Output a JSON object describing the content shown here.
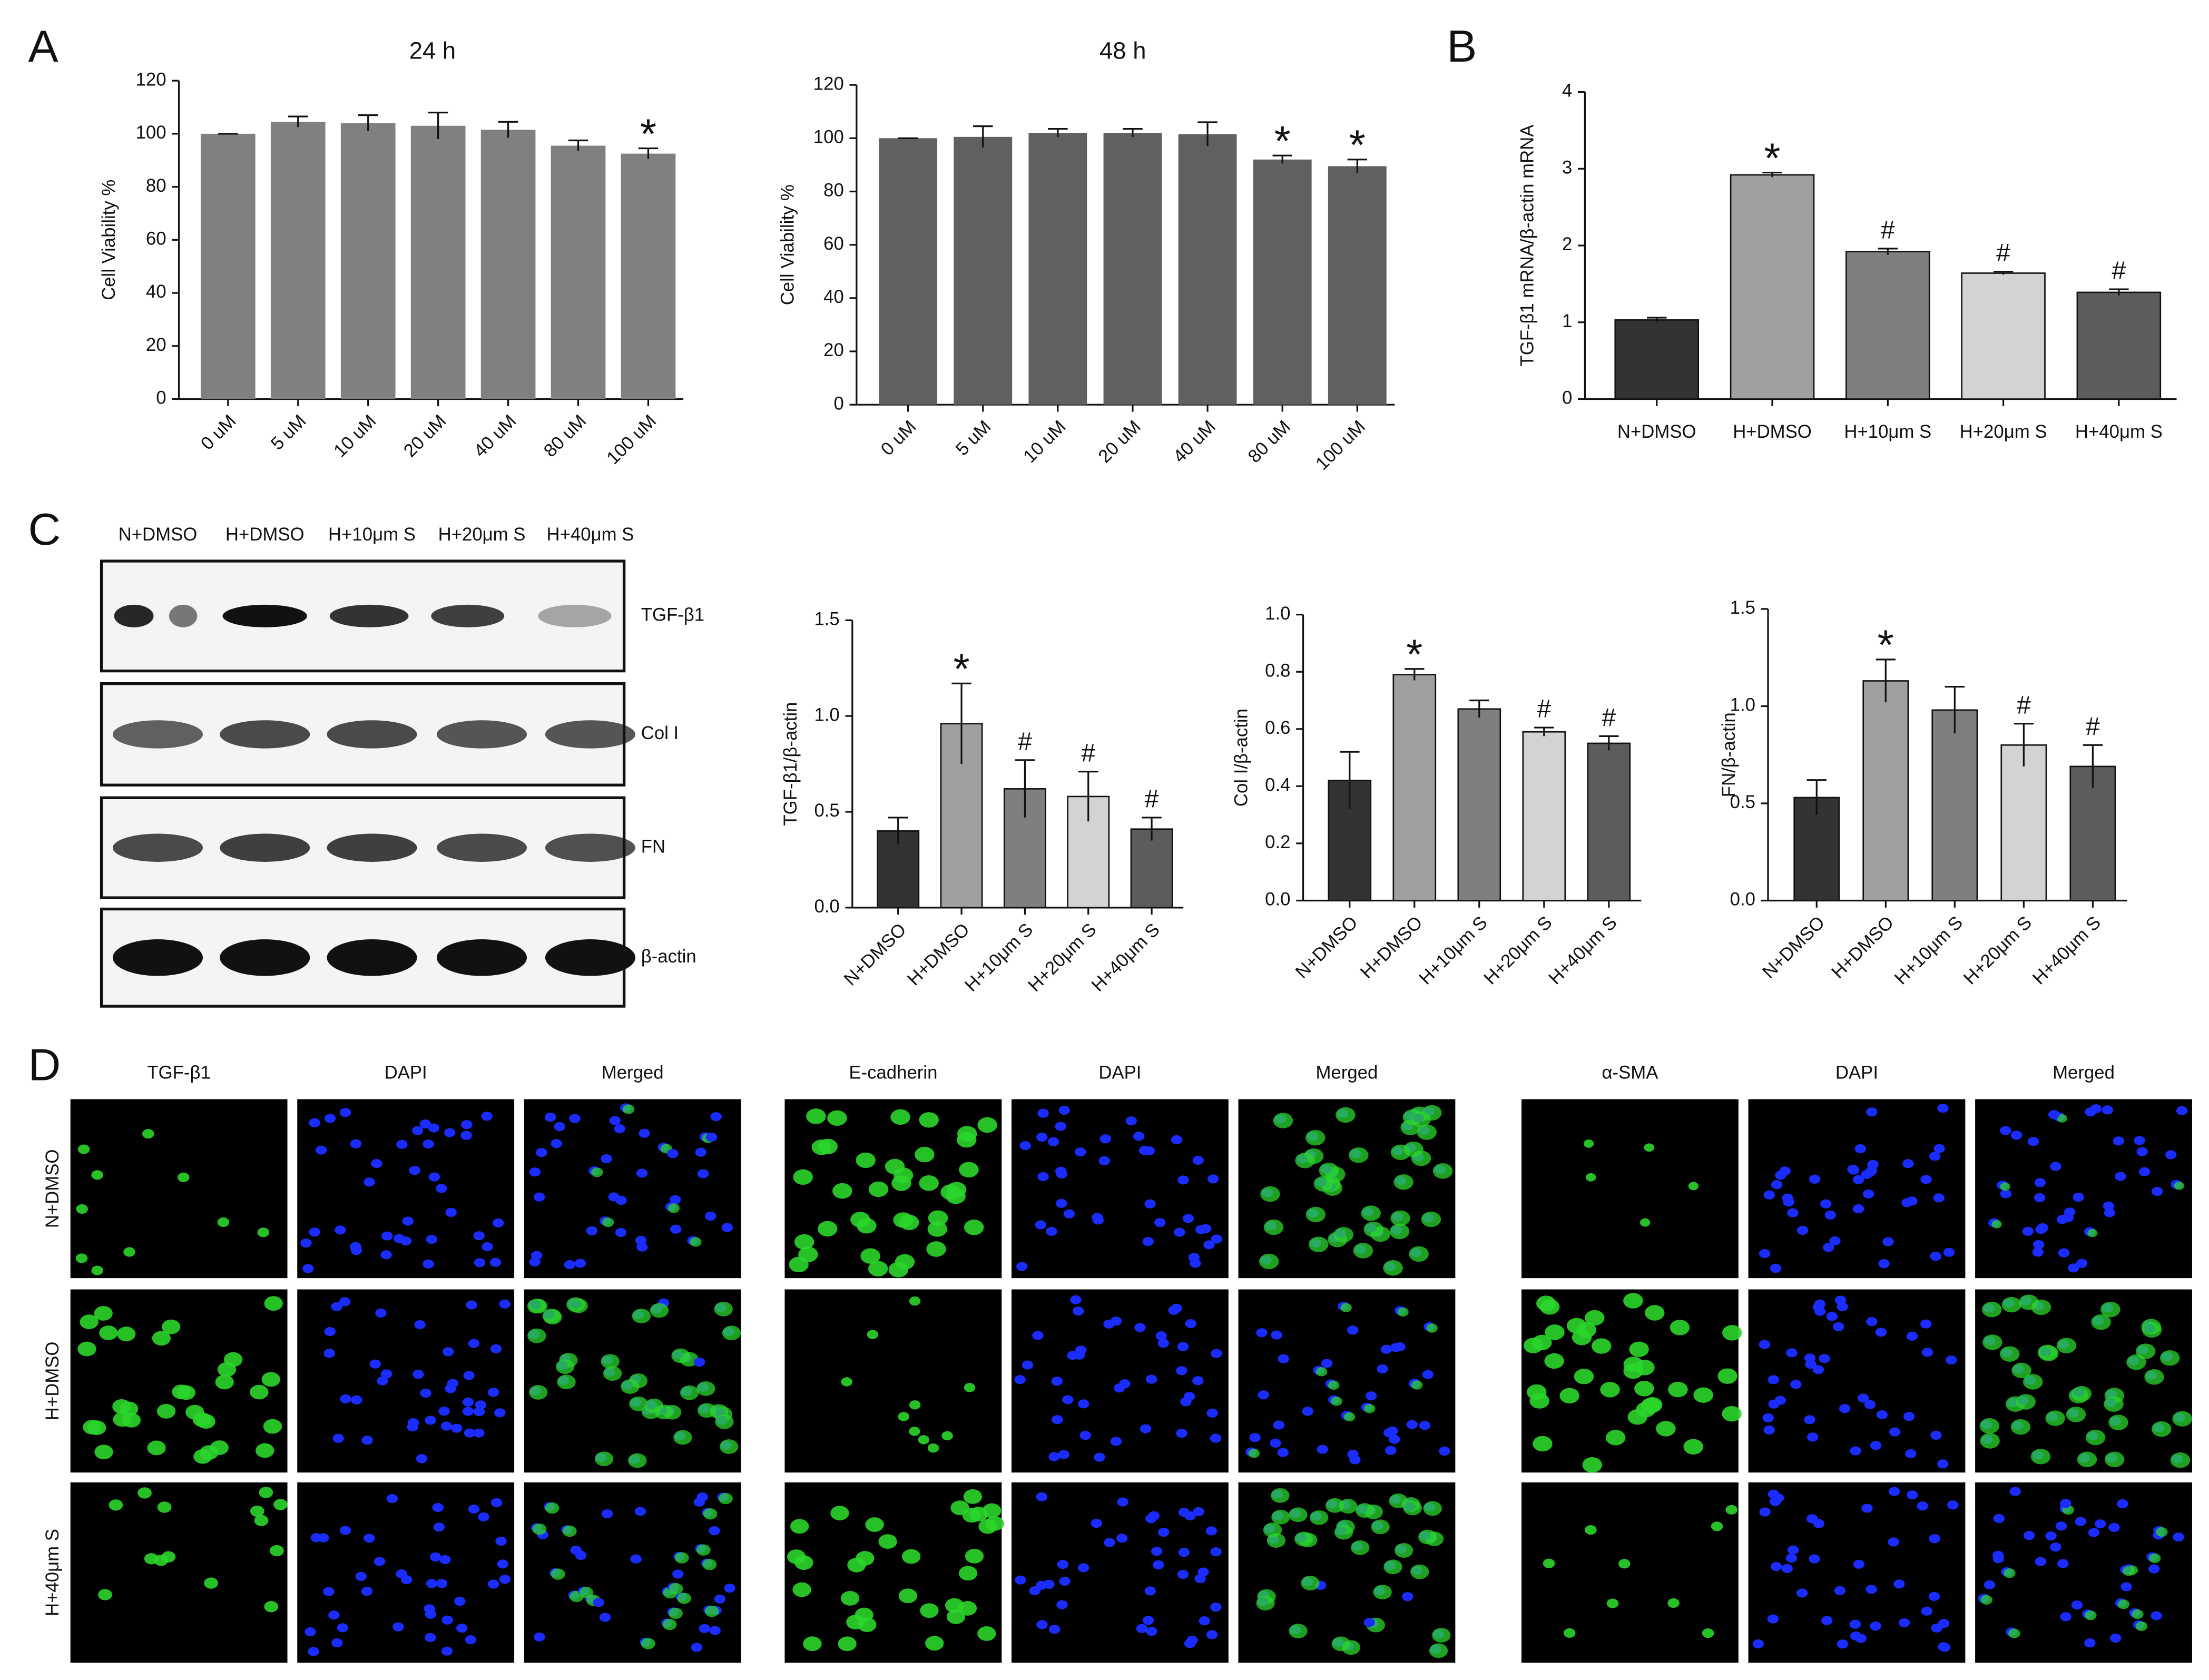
{
  "panel_labels": [
    "A",
    "B",
    "C",
    "D"
  ],
  "chart_data": [
    {
      "type": "bar",
      "title": "24 h",
      "y_label": "Cell  Viability %",
      "categories": [
        "0 uM",
        "5 uM",
        "10 uM",
        "20 uM",
        "40 uM",
        "80 uM",
        "100 uM"
      ],
      "values": [
        100,
        104.5,
        104,
        103,
        101.5,
        95.5,
        92.5
      ],
      "errors": [
        0,
        2,
        3,
        5,
        3,
        2,
        2
      ],
      "markers": [
        null,
        null,
        null,
        null,
        null,
        null,
        "*"
      ],
      "color": "#808080",
      "ylim": [
        0,
        120
      ],
      "yticks": [
        0,
        20,
        40,
        60,
        80,
        100,
        120
      ]
    },
    {
      "type": "bar",
      "title": "48 h",
      "y_label": "Cell  Viability %",
      "categories": [
        "0 uM",
        "5 uM",
        "10 uM",
        "20 uM",
        "40 uM",
        "80 uM",
        "100 uM"
      ],
      "values": [
        100,
        100.5,
        102,
        102,
        101.5,
        92,
        89.5
      ],
      "errors": [
        0,
        4,
        1.5,
        1.5,
        4.5,
        1.5,
        2.5
      ],
      "markers": [
        null,
        null,
        null,
        null,
        null,
        "*",
        "*"
      ],
      "color": "#606060",
      "ylim": [
        0,
        120
      ],
      "yticks": [
        0,
        20,
        40,
        60,
        80,
        100,
        120
      ]
    },
    {
      "type": "bar",
      "y_label": "TGF-β1 mRNA/β-actin mRNA",
      "categories": [
        "N+DMSO",
        "H+DMSO",
        "H+10μm S",
        "H+20μm S",
        "H+40μm S"
      ],
      "values": [
        1.03,
        2.92,
        1.92,
        1.64,
        1.39
      ],
      "errors": [
        0.03,
        0.03,
        0.04,
        0.02,
        0.04
      ],
      "markers": [
        null,
        "*",
        "#",
        "#",
        "#"
      ],
      "colors": [
        "#333333",
        "#a0a0a0",
        "#7f7f7f",
        "#d3d3d3",
        "#5c5c5c"
      ],
      "ylim": [
        0,
        4
      ],
      "yticks": [
        0,
        1,
        2,
        3,
        4
      ]
    },
    {
      "type": "bar",
      "y_label": "TGF-β1/β-actin",
      "categories": [
        "N+DMSO",
        "H+DMSO",
        "H+10μm S",
        "H+20μm S",
        "H+40μm S"
      ],
      "values": [
        0.4,
        0.96,
        0.62,
        0.58,
        0.41
      ],
      "errors": [
        0.07,
        0.21,
        0.15,
        0.13,
        0.06
      ],
      "markers": [
        null,
        "*",
        "#",
        "#",
        "#"
      ],
      "colors": [
        "#333333",
        "#a0a0a0",
        "#7f7f7f",
        "#d3d3d3",
        "#5c5c5c"
      ],
      "ylim": [
        0,
        1.5
      ],
      "yticks": [
        {
          "value": 0,
          "label": "0.0"
        },
        {
          "value": 0.5,
          "label": "0.5"
        },
        {
          "value": 1,
          "label": "1.0"
        },
        1.5
      ]
    },
    {
      "type": "bar",
      "y_label": "Col I/β-actin",
      "categories": [
        "N+DMSO",
        "H+DMSO",
        "H+10μm S",
        "H+20μm S",
        "H+40μm S"
      ],
      "values": [
        0.42,
        0.79,
        0.67,
        0.59,
        0.55
      ],
      "errors": [
        0.1,
        0.02,
        0.03,
        0.015,
        0.025
      ],
      "markers": [
        null,
        "*",
        null,
        "#",
        "#"
      ],
      "colors": [
        "#333333",
        "#a0a0a0",
        "#7f7f7f",
        "#d3d3d3",
        "#5c5c5c"
      ],
      "ylim": [
        0,
        1
      ],
      "yticks": [
        {
          "value": 0,
          "label": "0.0"
        },
        0.2,
        0.4,
        0.6,
        0.8,
        {
          "value": 1,
          "label": "1.0"
        }
      ]
    },
    {
      "type": "bar",
      "y_label": "FN/β-actin",
      "categories": [
        "N+DMSO",
        "H+DMSO",
        "H+10μm S",
        "H+20μm S",
        "H+40μm S"
      ],
      "values": [
        0.53,
        1.13,
        0.98,
        0.8,
        0.69
      ],
      "errors": [
        0.09,
        0.11,
        0.12,
        0.11,
        0.11
      ],
      "markers": [
        null,
        "*",
        null,
        "#",
        "#"
      ],
      "colors": [
        "#333333",
        "#a0a0a0",
        "#7f7f7f",
        "#d3d3d3",
        "#5c5c5c"
      ],
      "ylim": [
        0,
        1.5
      ],
      "yticks": [
        {
          "value": 0,
          "label": "0.0"
        },
        {
          "value": 0.5,
          "label": "0.5"
        },
        {
          "value": 1,
          "label": "1.0"
        },
        1.5
      ]
    }
  ],
  "western_blot": {
    "lanes": [
      "N+DMSO",
      "H+DMSO",
      "H+10μm S",
      "H+20μm S",
      "H+40μm S"
    ],
    "bands": [
      "TGF-β1",
      "Col I",
      "FN",
      "β-actin"
    ]
  },
  "immunofluorescence": {
    "groups": [
      {
        "columns": [
          "TGF-β1",
          "DAPI",
          "Merged"
        ]
      },
      {
        "columns": [
          "E-cadherin",
          "DAPI",
          "Merged"
        ]
      },
      {
        "columns": [
          "α-SMA",
          "DAPI",
          "Merged"
        ]
      }
    ],
    "rows": [
      "N+DMSO",
      "H+DMSO",
      "H+40μm S"
    ]
  }
}
